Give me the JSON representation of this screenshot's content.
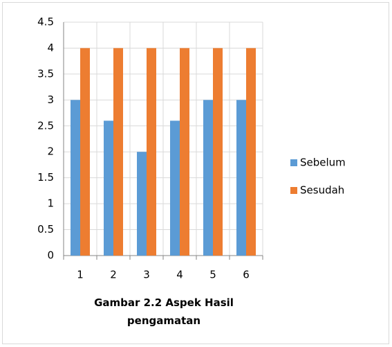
{
  "chart_data": {
    "type": "bar",
    "x_label": "Gambar 2.2 Aspek Hasil pengamatan",
    "categories": [
      "1",
      "2",
      "3",
      "4",
      "5",
      "6"
    ],
    "series": [
      {
        "name": "Sebelum",
        "color": "#5b9bd5",
        "values": [
          3,
          2.6,
          2,
          2.6,
          3,
          3
        ]
      },
      {
        "name": "Sesudah",
        "color": "#ed7d31",
        "values": [
          4,
          4,
          4,
          4,
          4,
          4
        ]
      }
    ],
    "ylim": [
      0,
      4.5
    ],
    "yticks": [
      0,
      0.5,
      1,
      1.5,
      2,
      2.5,
      3,
      3.5,
      4,
      4.5
    ],
    "grid": true,
    "legend": "right"
  }
}
